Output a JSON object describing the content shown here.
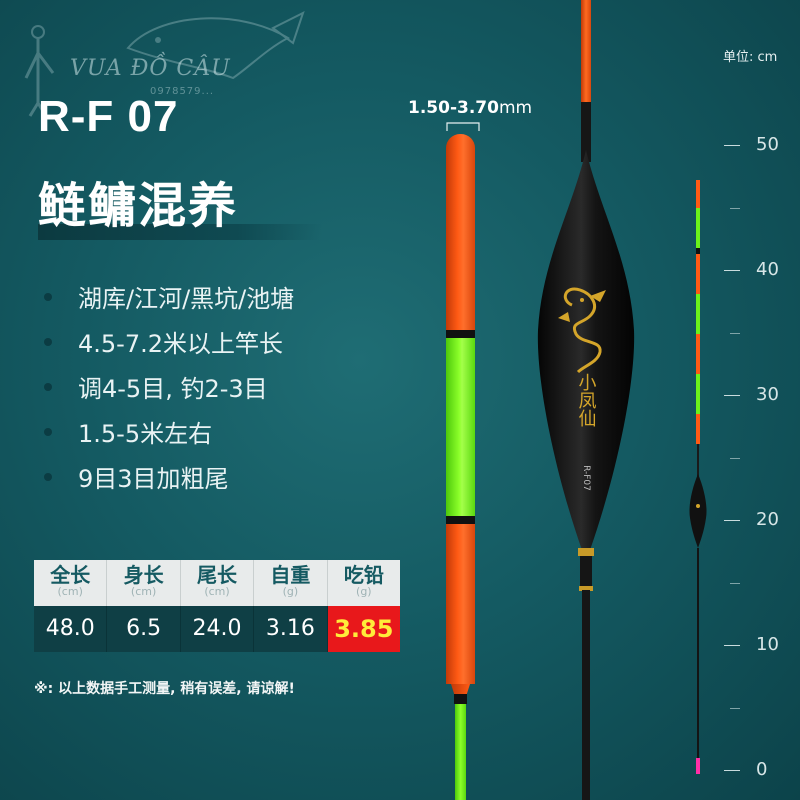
{
  "watermark": {
    "brand": "VUA ĐỒ CÂU",
    "phone": "0978579..."
  },
  "product": {
    "model": "R-F 07",
    "name": "鲢鳙混养"
  },
  "features": [
    "湖库/江河/黑坑/池塘",
    "4.5-7.2米以上竿长",
    "调4-5目, 钓2-3目",
    "1.5-5米左右",
    "9目3目加粗尾"
  ],
  "specs": {
    "headers": [
      {
        "label": "全长",
        "unit": "(cm)"
      },
      {
        "label": "身长",
        "unit": "(cm)"
      },
      {
        "label": "尾长",
        "unit": "(cm)"
      },
      {
        "label": "自重",
        "unit": "(g)"
      },
      {
        "label": "吃铅",
        "unit": "(g)"
      }
    ],
    "values": [
      "48.0",
      "6.5",
      "24.0",
      "3.16",
      "3.85"
    ],
    "highlight_color": "#e8181b"
  },
  "note": "※: 以上数据手工测量, 稍有误差, 请谅解!",
  "diameter": {
    "range": "1.50-3.70",
    "unit": "mm"
  },
  "scale": {
    "unit_label": "单位: cm",
    "labels": [
      "50",
      "40",
      "30",
      "20",
      "10",
      "0"
    ]
  },
  "float_text": {
    "brand": "小凤仙",
    "code": "R-F07"
  },
  "colors": {
    "background": "#145a62",
    "tip_orange": "#ff5a14",
    "tip_green": "#7dff1a",
    "body": "#111111",
    "dragon_gold": "#d4a52a"
  }
}
